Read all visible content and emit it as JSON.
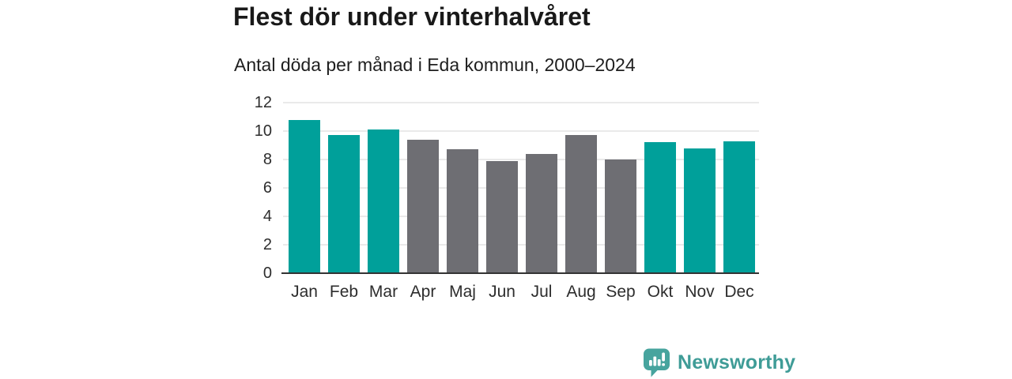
{
  "header": {
    "title": "Flest dör under vinterhalvåret",
    "subtitle": "Antal döda per månad i Eda kommun, 2000–2024"
  },
  "chart_data": {
    "type": "bar",
    "title": "Flest dör under vinterhalvåret",
    "subtitle": "Antal döda per månad i Eda kommun, 2000–2024",
    "categories": [
      "Jan",
      "Feb",
      "Mar",
      "Apr",
      "Maj",
      "Jun",
      "Jul",
      "Aug",
      "Sep",
      "Okt",
      "Nov",
      "Dec"
    ],
    "values": [
      10.8,
      9.7,
      10.1,
      9.4,
      8.7,
      7.9,
      8.4,
      9.7,
      8.0,
      9.2,
      8.8,
      9.3
    ],
    "bar_colors": [
      "teal",
      "teal",
      "teal",
      "gray",
      "gray",
      "gray",
      "gray",
      "gray",
      "gray",
      "teal",
      "teal",
      "teal"
    ],
    "palette": {
      "teal": "#00A09A",
      "gray": "#6E6E73"
    },
    "xlabel": "",
    "ylabel": "",
    "ylim": [
      0,
      12
    ],
    "yticks": [
      0,
      2,
      4,
      6,
      8,
      10,
      12
    ],
    "grid": "horizontal",
    "legend": "none"
  },
  "footer": {
    "brand": "Newsworthy",
    "brand_color": "#3F9C97",
    "icon_color": "#47A49E",
    "icon_glyph_color": "#ffffff"
  }
}
